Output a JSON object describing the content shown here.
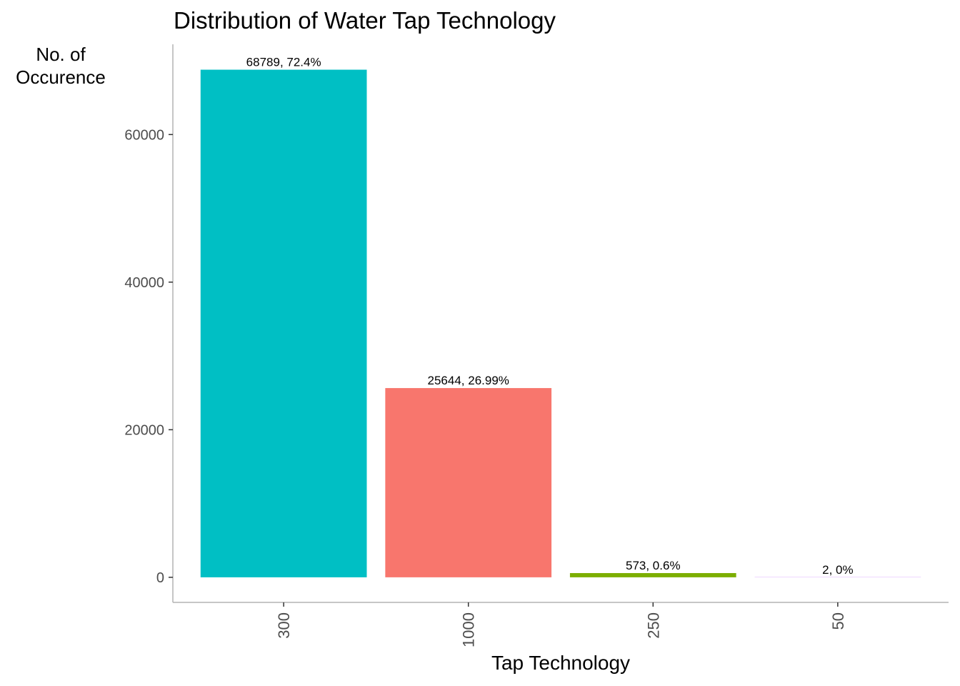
{
  "chart_data": {
    "type": "bar",
    "title": "Distribution of Water Tap Technology",
    "xlabel": "Tap Technology",
    "ylabel_lines": [
      "No. of",
      "Occurence"
    ],
    "categories": [
      "300",
      "1000",
      "250",
      "50"
    ],
    "values": [
      68789,
      25644,
      573,
      2
    ],
    "data_labels": [
      "68789, 72.4%",
      "25644, 26.99%",
      "573, 0.6%",
      "2, 0%"
    ],
    "colors": [
      "#00BFC4",
      "#F8766D",
      "#7CAE00",
      "#C77CFF"
    ],
    "yticks": [
      0,
      20000,
      40000,
      60000
    ],
    "ylim": [
      -3400,
      72230
    ],
    "grid": false,
    "legend": "none"
  }
}
